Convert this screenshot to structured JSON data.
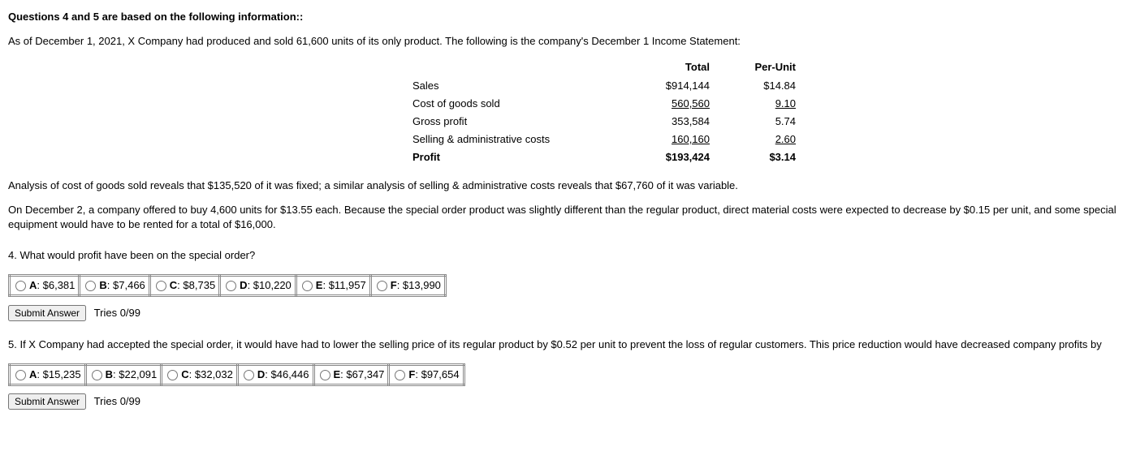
{
  "header": "Questions 4 and 5 are based on the following information:",
  "intro": "As of December 1, 2021, X Company had produced and sold 61,600 units of its only product. The following is the company's December 1 Income Statement:",
  "income_table": {
    "headers": {
      "label": "",
      "total": "Total",
      "per_unit": "Per-Unit"
    },
    "rows": [
      {
        "label": "Sales",
        "total": "$914,144",
        "per_unit": "$14.84",
        "underline": false,
        "bold": false
      },
      {
        "label": "Cost of goods sold",
        "total": "   560,560",
        "per_unit": "   9.10",
        "underline": true,
        "bold": false
      },
      {
        "label": "Gross profit",
        "total": "353,584",
        "per_unit": "5.74",
        "underline": false,
        "bold": false
      },
      {
        "label": "Selling & administrative costs",
        "total": "   160,160",
        "per_unit": "   2.60",
        "underline": true,
        "bold": false
      },
      {
        "label": "Profit",
        "total": "$193,424",
        "per_unit": "$3.14",
        "underline": false,
        "bold": true
      }
    ]
  },
  "analysis_p1": "Analysis of cost of goods sold reveals that $135,520 of it was fixed; a similar analysis of selling & administrative costs reveals that $67,760 of it was variable.",
  "analysis_p2": "On December 2, a company offered to buy 4,600 units for $13.55 each. Because the special order product was slightly different than the regular product, direct material costs were expected to decrease by $0.15 per unit, and some special equipment would have to be rented for a total of $16,000.",
  "q4": {
    "prompt": "4. What would profit have been on the special order?",
    "options": [
      {
        "key": "A",
        "val": "$6,381"
      },
      {
        "key": "B",
        "val": "$7,466"
      },
      {
        "key": "C",
        "val": "$8,735"
      },
      {
        "key": "D",
        "val": "$10,220"
      },
      {
        "key": "E",
        "val": "$11,957"
      },
      {
        "key": "F",
        "val": "$13,990"
      }
    ],
    "submit": "Submit Answer",
    "tries": "Tries 0/99"
  },
  "q5": {
    "prompt": "5. If X Company had accepted the special order, it would have had to lower the selling price of its regular product by $0.52 per unit to prevent the loss of regular customers. This price reduction would have decreased company profits by",
    "options": [
      {
        "key": "A",
        "val": "$15,235"
      },
      {
        "key": "B",
        "val": "$22,091"
      },
      {
        "key": "C",
        "val": "$32,032"
      },
      {
        "key": "D",
        "val": "$46,446"
      },
      {
        "key": "E",
        "val": "$67,347"
      },
      {
        "key": "F",
        "val": "$97,654"
      }
    ],
    "submit": "Submit Answer",
    "tries": "Tries 0/99"
  }
}
